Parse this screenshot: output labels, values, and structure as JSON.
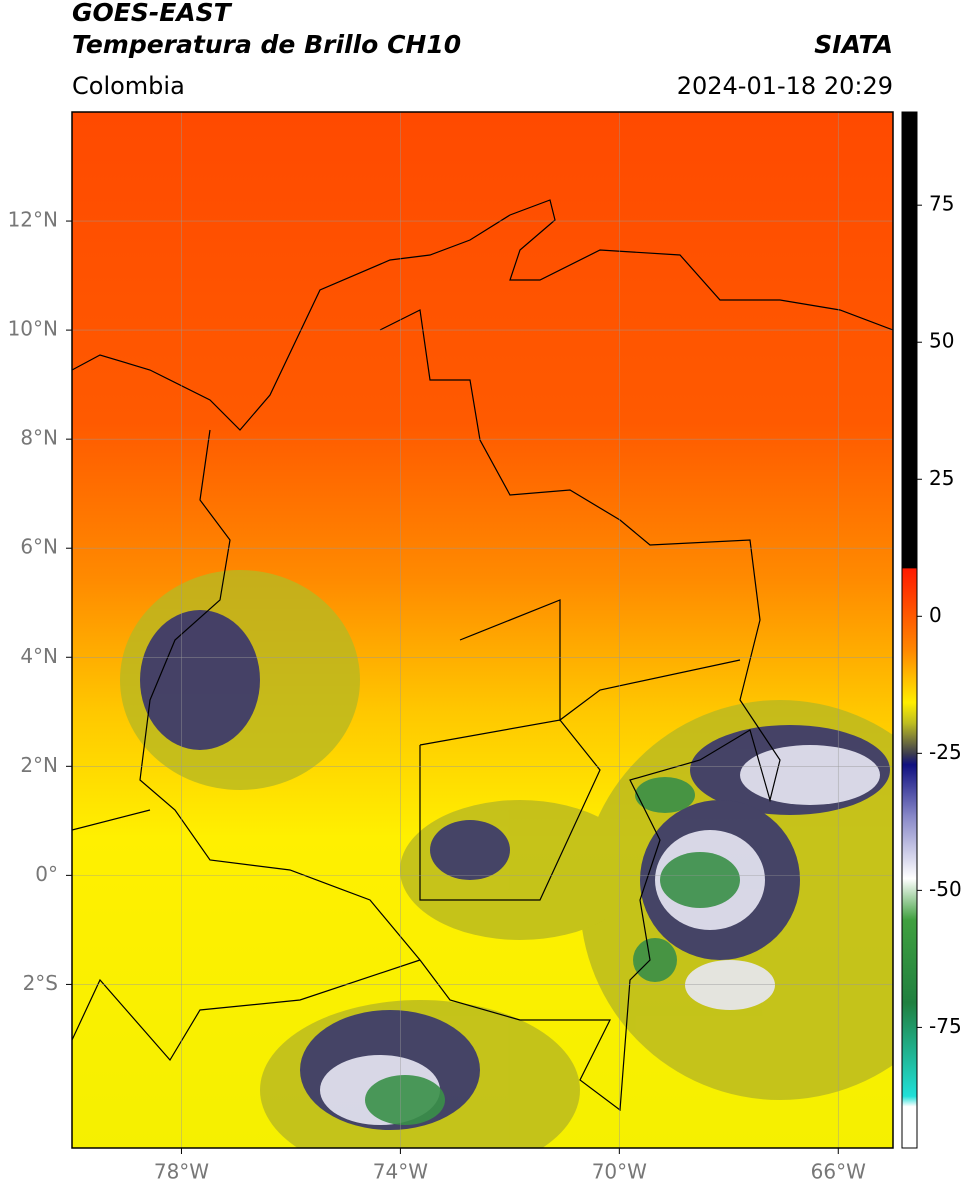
{
  "header": {
    "title": "GOES-EAST",
    "subtitle": "Temperatura de Brillo CH10",
    "region": "Colombia",
    "source": "SIATA",
    "datetime": "2024-01-18 20:29"
  },
  "map": {
    "xlim": [
      -80,
      -65
    ],
    "ylim": [
      -5,
      14
    ],
    "xticks": [
      {
        "value": -78,
        "label": "78°W"
      },
      {
        "value": -74,
        "label": "74°W"
      },
      {
        "value": -70,
        "label": "70°W"
      },
      {
        "value": -66,
        "label": "66°W"
      }
    ],
    "yticks": [
      {
        "value": 12,
        "label": "12°N"
      },
      {
        "value": 10,
        "label": "10°N"
      },
      {
        "value": 8,
        "label": "8°N"
      },
      {
        "value": 6,
        "label": "6°N"
      },
      {
        "value": 4,
        "label": "4°N"
      },
      {
        "value": 2,
        "label": "2°N"
      },
      {
        "value": 0,
        "label": "0°"
      },
      {
        "value": -2,
        "label": "2°S"
      }
    ],
    "grid": true
  },
  "colorbar": {
    "ylim": [
      -97,
      92
    ],
    "yticks": [
      75,
      50,
      25,
      0,
      -25,
      -50,
      -75
    ]
  }
}
